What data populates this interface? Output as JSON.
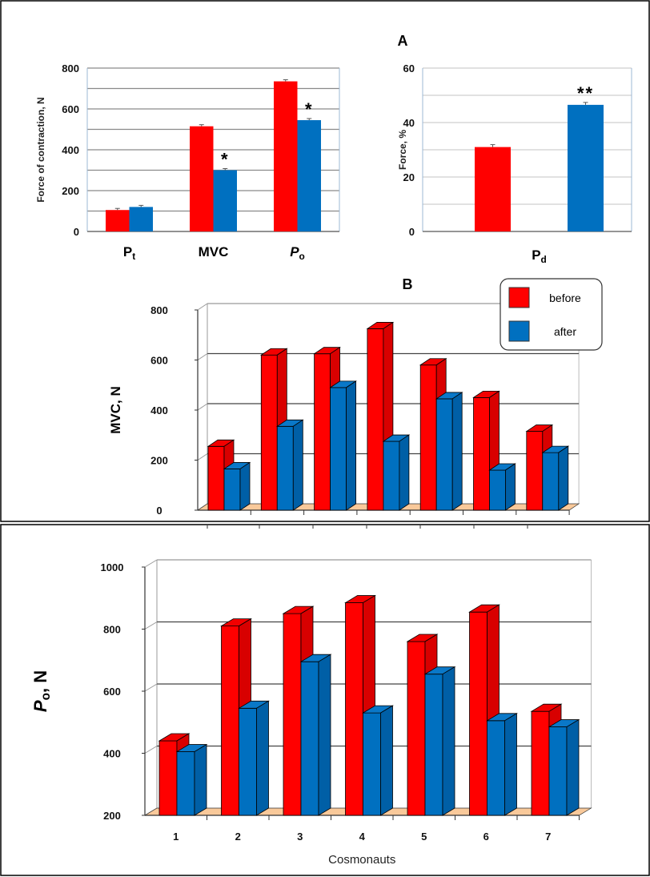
{
  "panel_labels": {
    "a": "A",
    "b": "B"
  },
  "colors": {
    "before": "#ff0000",
    "after": "#0070c0",
    "floor": "#f9c99a"
  },
  "chart_data": [
    {
      "type": "bar",
      "panel": "A",
      "ylabel": "Force of contraction, N",
      "categories": [
        "Pt",
        "MVC",
        "Po"
      ],
      "ylim": [
        0,
        800
      ],
      "yticks": [
        0,
        200,
        400,
        600,
        800
      ],
      "grid": true,
      "series": [
        {
          "values": [
            105,
            515,
            735
          ],
          "color": "#ff0000"
        },
        {
          "values": [
            120,
            300,
            545
          ],
          "color": "#0070c0"
        }
      ],
      "annotations": [
        {
          "category": "MVC",
          "series": 1,
          "text": "*"
        },
        {
          "category": "Po",
          "series": 1,
          "text": "*"
        }
      ]
    },
    {
      "type": "bar",
      "panel": "A",
      "ylabel": "Force, %",
      "categories": [
        "Pd"
      ],
      "ylim": [
        0,
        60
      ],
      "yticks": [
        0,
        20,
        40,
        60
      ],
      "grid": true,
      "series": [
        {
          "values": [
            31
          ],
          "color": "#ff0000"
        },
        {
          "values": [
            46.5
          ],
          "color": "#0070c0"
        }
      ],
      "annotations": [
        {
          "category": "Pd",
          "series": 1,
          "text": "**"
        }
      ]
    },
    {
      "type": "bar",
      "style": "3d",
      "panel": "B",
      "ylabel": "MVC, N",
      "categories": [
        "1",
        "2",
        "3",
        "4",
        "5",
        "6",
        "7"
      ],
      "show_category_labels": false,
      "ylim": [
        0,
        800
      ],
      "yticks": [
        0,
        200,
        400,
        600,
        800
      ],
      "grid": true,
      "legend": "top-right",
      "series": [
        {
          "name": "before",
          "values": [
            255,
            620,
            625,
            725,
            580,
            450,
            315
          ],
          "color": "#ff0000"
        },
        {
          "name": "after",
          "values": [
            165,
            335,
            490,
            275,
            445,
            160,
            230
          ],
          "color": "#0070c0"
        }
      ]
    },
    {
      "type": "bar",
      "style": "3d",
      "ylabel": "Po, N",
      "xlabel": "Cosmonauts",
      "categories": [
        "1",
        "2",
        "3",
        "4",
        "5",
        "6",
        "7"
      ],
      "show_category_labels": true,
      "ylim": [
        200,
        1000
      ],
      "yticks": [
        200,
        400,
        600,
        800,
        1000
      ],
      "grid": true,
      "series": [
        {
          "values": [
            440,
            810,
            850,
            885,
            760,
            855,
            535
          ],
          "color": "#ff0000"
        },
        {
          "values": [
            405,
            545,
            695,
            530,
            655,
            505,
            485
          ],
          "color": "#0070c0"
        }
      ]
    }
  ]
}
